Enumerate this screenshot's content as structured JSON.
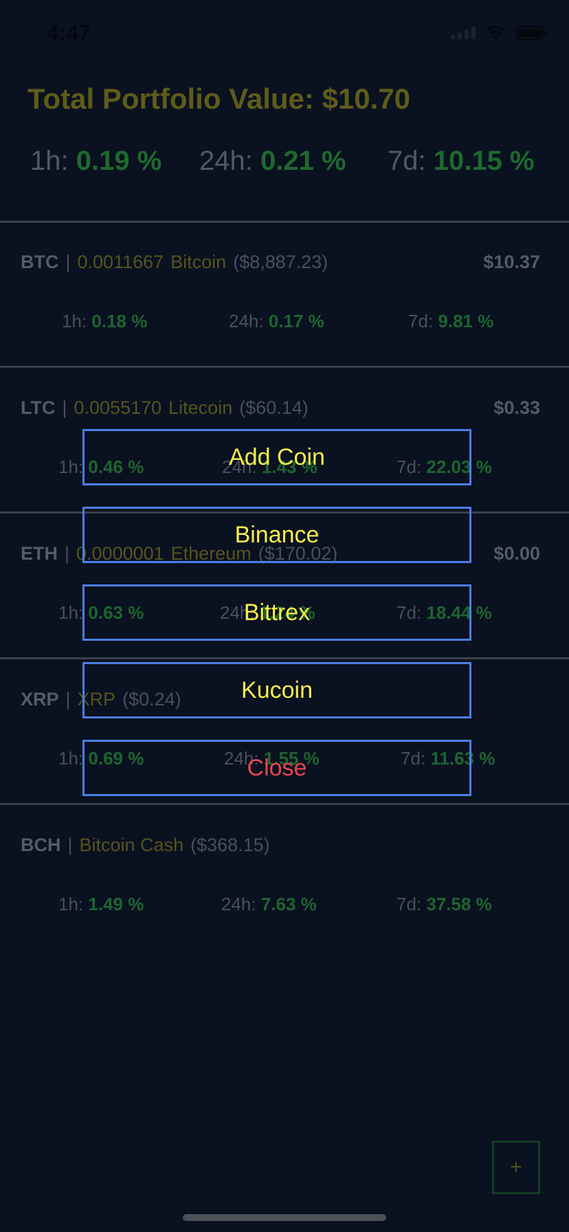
{
  "status_bar": {
    "time": "4:47"
  },
  "portfolio": {
    "title": "Total Portfolio Value: $10.70",
    "changes": [
      {
        "label": "1h:",
        "value": "0.19 %"
      },
      {
        "label": "24h:",
        "value": "0.21 %"
      },
      {
        "label": "7d:",
        "value": "10.15 %"
      }
    ]
  },
  "coins": [
    {
      "symbol": "BTC",
      "separator": "|",
      "amount": "0.0011667",
      "name": "Bitcoin",
      "price": "($8,887.23)",
      "value": "$10.37",
      "changes": [
        {
          "label": "1h:",
          "value": "0.18 %"
        },
        {
          "label": "24h:",
          "value": "0.17 %"
        },
        {
          "label": "7d:",
          "value": "9.81 %"
        }
      ]
    },
    {
      "symbol": "LTC",
      "separator": "|",
      "amount": "0.0055170",
      "name": "Litecoin",
      "price": "($60.14)",
      "value": "$0.33",
      "changes": [
        {
          "label": "1h:",
          "value": "0.46 %"
        },
        {
          "label": "24h:",
          "value": "1.43 %"
        },
        {
          "label": "7d:",
          "value": "22.03 %"
        }
      ]
    },
    {
      "symbol": "ETH",
      "separator": "|",
      "amount": "0.0000001",
      "name": "Ethereum",
      "price": "($170.02)",
      "value": "$0.00",
      "changes": [
        {
          "label": "1h:",
          "value": "0.63 %"
        },
        {
          "label": "24h:",
          "value": "1.24 %"
        },
        {
          "label": "7d:",
          "value": "18.44 %"
        }
      ]
    },
    {
      "symbol": "XRP",
      "separator": "|",
      "amount": "",
      "name": "XRP",
      "price": "($0.24)",
      "value": "",
      "changes": [
        {
          "label": "1h:",
          "value": "0.69 %"
        },
        {
          "label": "24h:",
          "value": "1.55 %"
        },
        {
          "label": "7d:",
          "value": "11.63 %"
        }
      ]
    },
    {
      "symbol": "BCH",
      "separator": "|",
      "amount": "",
      "name": "Bitcoin Cash",
      "price": "($368.15)",
      "value": "",
      "changes": [
        {
          "label": "1h:",
          "value": "1.49 %"
        },
        {
          "label": "24h:",
          "value": "7.63 %"
        },
        {
          "label": "7d:",
          "value": "37.58 %"
        }
      ]
    }
  ],
  "menu": {
    "items": [
      "Add Coin",
      "Binance",
      "Bittrex",
      "Kucoin"
    ],
    "close": "Close"
  },
  "fab": {
    "label": "+"
  }
}
